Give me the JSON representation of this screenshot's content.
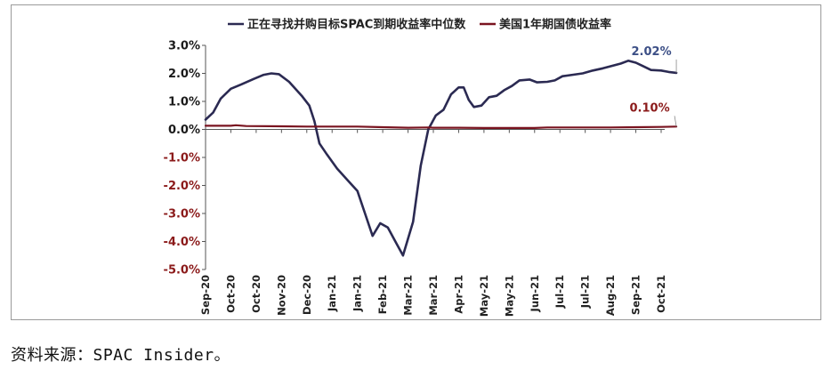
{
  "chart_data": {
    "type": "line",
    "title": "",
    "xlabel": "",
    "ylabel": "",
    "ylim": [
      -5.0,
      3.0
    ],
    "yticks": [
      "3.0%",
      "2.0%",
      "1.0%",
      "0.0%",
      "-1.0%",
      "-2.0%",
      "-3.0%",
      "-4.0%",
      "-5.0%"
    ],
    "ytick_values": [
      3,
      2,
      1,
      0,
      -1,
      -2,
      -3,
      -4,
      -5
    ],
    "ytick_colors": {
      "positive": "#1a1a1a",
      "negative": "#8b1a1a"
    },
    "x_categories": [
      "Sep-20",
      "Oct-20",
      "Oct-20",
      "Nov-20",
      "Dec-20",
      "Jan-21",
      "Jan-21",
      "Feb-21",
      "Mar-21",
      "Mar-21",
      "Apr-21",
      "May-21",
      "May-21",
      "Jun-21",
      "Jul-21",
      "Jul-21",
      "Aug-21",
      "Sep-21",
      "Oct-21"
    ],
    "legend_position": "top",
    "grid": false,
    "series": [
      {
        "name": "正在寻找并购目标SPAC到期收益率中位数",
        "color": "#2b2a52",
        "values": [
          [
            0,
            0.35
          ],
          [
            0.3,
            0.6
          ],
          [
            0.6,
            1.1
          ],
          [
            1.0,
            1.45
          ],
          [
            1.4,
            1.6
          ],
          [
            1.9,
            1.8
          ],
          [
            2.3,
            1.95
          ],
          [
            2.6,
            2.0
          ],
          [
            2.9,
            1.97
          ],
          [
            3.3,
            1.7
          ],
          [
            3.8,
            1.2
          ],
          [
            4.1,
            0.85
          ],
          [
            4.3,
            0.3
          ],
          [
            4.5,
            -0.5
          ],
          [
            4.8,
            -0.9
          ],
          [
            5.2,
            -1.4
          ],
          [
            5.6,
            -1.8
          ],
          [
            6.0,
            -2.2
          ],
          [
            6.3,
            -3.0
          ],
          [
            6.6,
            -3.8
          ],
          [
            6.9,
            -3.35
          ],
          [
            7.2,
            -3.5
          ],
          [
            7.5,
            -4.0
          ],
          [
            7.8,
            -4.5
          ],
          [
            8.2,
            -3.3
          ],
          [
            8.5,
            -1.3
          ],
          [
            8.8,
            0.0
          ],
          [
            9.1,
            0.5
          ],
          [
            9.4,
            0.7
          ],
          [
            9.7,
            1.25
          ],
          [
            10.0,
            1.5
          ],
          [
            10.2,
            1.5
          ],
          [
            10.4,
            1.05
          ],
          [
            10.6,
            0.8
          ],
          [
            10.9,
            0.85
          ],
          [
            11.2,
            1.15
          ],
          [
            11.5,
            1.2
          ],
          [
            11.8,
            1.4
          ],
          [
            12.1,
            1.55
          ],
          [
            12.4,
            1.75
          ],
          [
            12.8,
            1.78
          ],
          [
            13.1,
            1.68
          ],
          [
            13.5,
            1.7
          ],
          [
            13.8,
            1.75
          ],
          [
            14.1,
            1.9
          ],
          [
            14.5,
            1.95
          ],
          [
            14.9,
            2.0
          ],
          [
            15.3,
            2.1
          ],
          [
            15.7,
            2.18
          ],
          [
            16.1,
            2.28
          ],
          [
            16.4,
            2.35
          ],
          [
            16.7,
            2.45
          ],
          [
            17.0,
            2.38
          ],
          [
            17.3,
            2.25
          ],
          [
            17.6,
            2.12
          ],
          [
            18.0,
            2.1
          ],
          [
            18.3,
            2.05
          ],
          [
            18.6,
            2.02
          ]
        ],
        "end_label": "2.02%"
      },
      {
        "name": "美国1年期国债收益率",
        "color": "#7a1420",
        "values": [
          [
            0,
            0.13
          ],
          [
            1,
            0.13
          ],
          [
            1.2,
            0.15
          ],
          [
            1.6,
            0.12
          ],
          [
            3,
            0.11
          ],
          [
            4,
            0.1
          ],
          [
            5,
            0.1
          ],
          [
            6,
            0.1
          ],
          [
            7,
            0.08
          ],
          [
            8,
            0.06
          ],
          [
            8.8,
            0.07
          ],
          [
            9,
            0.06
          ],
          [
            10,
            0.06
          ],
          [
            11,
            0.05
          ],
          [
            12,
            0.05
          ],
          [
            13,
            0.05
          ],
          [
            13.5,
            0.07
          ],
          [
            14,
            0.07
          ],
          [
            15,
            0.07
          ],
          [
            16,
            0.07
          ],
          [
            17,
            0.08
          ],
          [
            18,
            0.09
          ],
          [
            18.6,
            0.1
          ]
        ],
        "end_label": "0.10%"
      }
    ]
  },
  "source_text": "资料来源：SPAC Insider。"
}
